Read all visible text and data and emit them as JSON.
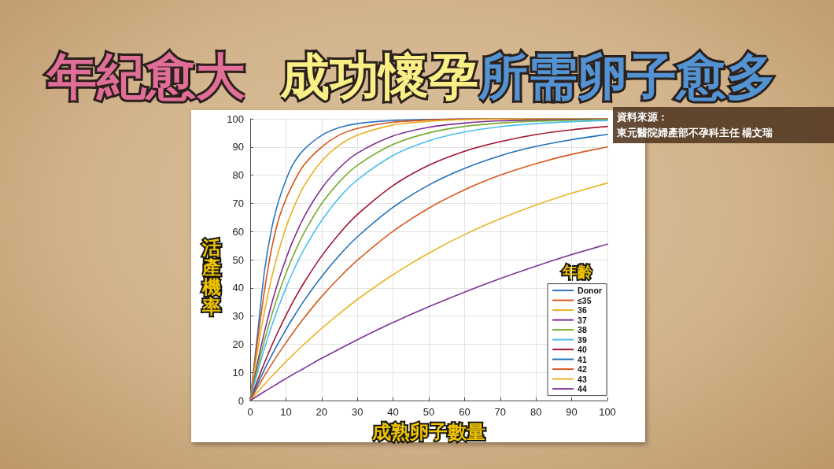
{
  "chart_data": {
    "type": "line",
    "title": "年紀愈大 成功懷孕所需卵子愈多",
    "xlabel": "成熟卵子數量",
    "ylabel": "活產機率",
    "legend_title": "年齡",
    "annotations": [
      "資料來源：",
      "東元醫院婦產部不孕科主任 楊文瑞"
    ],
    "x": [
      0,
      2,
      4,
      6,
      8,
      10,
      12,
      15,
      20,
      25,
      30,
      40,
      50,
      60,
      70,
      80,
      90,
      100
    ],
    "series": [
      {
        "name": "Donor",
        "color": "#2f76bd",
        "values": [
          0,
          23.0,
          46.0,
          61.0,
          71.0,
          78.3,
          83.9,
          89.0,
          94.1,
          96.9,
          98.3,
          99.4,
          99.8,
          100,
          100,
          100,
          100,
          100
        ]
      },
      {
        "name": "≤35",
        "color": "#d6531a",
        "values": [
          0,
          20.5,
          39.0,
          54.0,
          64.5,
          71.5,
          77.0,
          83.5,
          90.0,
          94.3,
          96.6,
          98.8,
          99.6,
          99.9,
          100,
          100,
          100,
          100
        ]
      },
      {
        "name": "36",
        "color": "#e9b021",
        "values": [
          0,
          17.3,
          31.6,
          43.5,
          53.2,
          61.3,
          68.0,
          76.0,
          85.0,
          90.7,
          94.2,
          97.8,
          99.1,
          99.7,
          99.9,
          100,
          100,
          100
        ]
      },
      {
        "name": "37",
        "color": "#7e2f8e",
        "values": [
          0,
          13.1,
          24.4,
          34.3,
          42.9,
          50.3,
          56.8,
          65.0,
          75.3,
          82.6,
          87.8,
          93.9,
          97.0,
          98.5,
          99.3,
          99.6,
          99.8,
          99.9
        ]
      },
      {
        "name": "38",
        "color": "#77ac30",
        "values": [
          0,
          11.3,
          21.3,
          30.2,
          38.1,
          45.1,
          51.3,
          59.3,
          69.9,
          77.7,
          83.5,
          90.9,
          95.0,
          97.3,
          98.5,
          99.2,
          99.5,
          99.8
        ]
      },
      {
        "name": "39",
        "color": "#4dbeee",
        "values": [
          0,
          9.7,
          18.5,
          26.4,
          33.5,
          39.9,
          45.8,
          53.5,
          63.9,
          72.1,
          78.3,
          87.0,
          92.2,
          95.3,
          97.2,
          98.3,
          99.0,
          99.4
        ]
      },
      {
        "name": "40",
        "color": "#a2142f",
        "values": [
          0,
          6.9,
          13.4,
          19.4,
          25.0,
          30.2,
          35.1,
          41.7,
          51.3,
          59.3,
          66.0,
          76.3,
          83.5,
          88.5,
          91.9,
          94.4,
          96.1,
          97.3
        ]
      },
      {
        "name": "41",
        "color": "#1f6fbb",
        "values": [
          0,
          5.6,
          11.0,
          16.0,
          20.7,
          25.2,
          29.4,
          35.3,
          44.0,
          51.6,
          58.1,
          68.6,
          76.5,
          82.4,
          86.9,
          90.2,
          92.6,
          94.5
        ]
      },
      {
        "name": "42",
        "color": "#d75a1f",
        "values": [
          0,
          4.5,
          8.8,
          12.9,
          16.8,
          20.5,
          24.1,
          29.2,
          36.9,
          43.7,
          49.8,
          60.1,
          68.3,
          74.8,
          80.0,
          84.1,
          87.4,
          90.0
        ]
      },
      {
        "name": "43",
        "color": "#ebb327",
        "values": [
          0,
          2.9,
          5.7,
          8.5,
          11.2,
          13.8,
          16.3,
          19.9,
          25.6,
          30.9,
          35.9,
          44.7,
          52.3,
          58.9,
          64.5,
          69.4,
          73.6,
          77.2
        ]
      },
      {
        "name": "44",
        "color": "#7e3497",
        "values": [
          0,
          1.6,
          3.2,
          4.7,
          6.3,
          7.8,
          9.3,
          11.4,
          15.0,
          18.3,
          21.6,
          27.7,
          33.3,
          38.5,
          43.3,
          47.7,
          51.8,
          55.5
        ]
      }
    ],
    "xlim": [
      0,
      100
    ],
    "ylim": [
      0,
      100
    ],
    "xticks": [
      0,
      10,
      20,
      30,
      40,
      50,
      60,
      70,
      80,
      90,
      100
    ],
    "yticks": [
      0,
      10,
      20,
      30,
      40,
      50,
      60,
      70,
      80,
      90,
      100
    ],
    "grid": true,
    "legend": "bottom right"
  }
}
